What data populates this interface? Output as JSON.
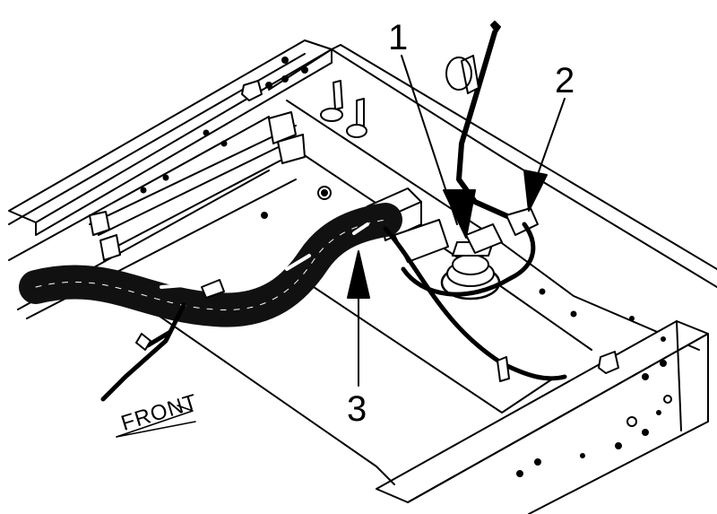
{
  "diagram": {
    "callouts": [
      {
        "id": "1",
        "label": "1"
      },
      {
        "id": "2",
        "label": "2"
      },
      {
        "id": "3",
        "label": "3"
      }
    ],
    "direction_label": "FRONT",
    "colors": {
      "line": "#000000",
      "background": "#ffffff",
      "harness": "#111111"
    }
  }
}
